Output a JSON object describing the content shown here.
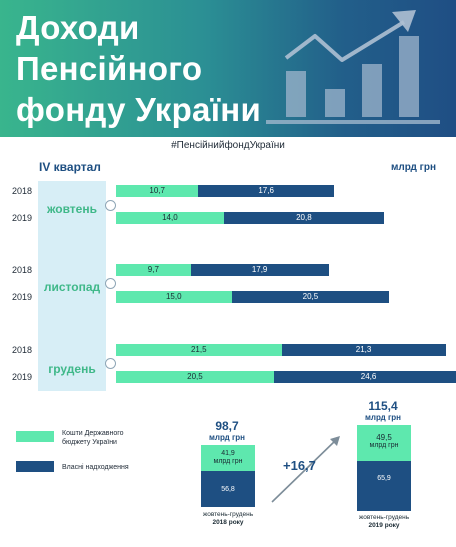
{
  "header": {
    "title_lines": [
      "Доходи",
      "Пенсійного",
      "фонду України"
    ]
  },
  "hashtag": "#ПенсійнийфондУкраїни",
  "quarter_label": "IV квартал",
  "unit": "млрд грн",
  "colors": {
    "state_budget": "#5ee8ae",
    "own_revenue": "#1e4f82",
    "month_label": "#3fb889",
    "panel": "#d7eef6"
  },
  "legend": {
    "state_budget": "Кошти Державного бюджету України",
    "own_revenue": "Власні надходження"
  },
  "chart_data": [
    {
      "type": "bar",
      "orientation": "horizontal",
      "stacked": true,
      "unit": "млрд грн",
      "groups": [
        {
          "month": "жовтень",
          "rows": [
            {
              "year": "2018",
              "state_budget": 10.7,
              "state_budget_label": "10,7",
              "own_revenue": 17.6,
              "own_revenue_label": "17,6"
            },
            {
              "year": "2019",
              "state_budget": 14.0,
              "state_budget_label": "14,0",
              "own_revenue": 20.8,
              "own_revenue_label": "20,8"
            }
          ]
        },
        {
          "month": "листопад",
          "rows": [
            {
              "year": "2018",
              "state_budget": 9.7,
              "state_budget_label": "9,7",
              "own_revenue": 17.9,
              "own_revenue_label": "17,9"
            },
            {
              "year": "2019",
              "state_budget": 15.0,
              "state_budget_label": "15,0",
              "own_revenue": 20.5,
              "own_revenue_label": "20,5"
            }
          ]
        },
        {
          "month": "грудень",
          "rows": [
            {
              "year": "2018",
              "state_budget": 21.5,
              "state_budget_label": "21,5",
              "own_revenue": 21.3,
              "own_revenue_label": "21,3"
            },
            {
              "year": "2019",
              "state_budget": 20.5,
              "state_budget_label": "20,5",
              "own_revenue": 24.6,
              "own_revenue_label": "24,6"
            }
          ]
        }
      ]
    },
    {
      "type": "bar",
      "orientation": "vertical",
      "stacked": true,
      "totals": [
        {
          "total_label": "98,7",
          "total": 98.7,
          "unit": "млрд грн",
          "state_budget": 41.9,
          "state_budget_label": "41,9",
          "state_budget_unit": "млрд грн",
          "own_revenue": 56.8,
          "own_revenue_label": "56,8",
          "period": "жовтень-грудень",
          "period_year": "2018 року"
        },
        {
          "total_label": "115,4",
          "total": 115.4,
          "unit": "млрд грн",
          "state_budget": 49.5,
          "state_budget_label": "49,5",
          "state_budget_unit": "млрд грн",
          "own_revenue": 65.9,
          "own_revenue_label": "65,9",
          "period": "жовтень-грудень",
          "period_year": "2019 року"
        }
      ],
      "delta_label": "+16,7"
    }
  ]
}
